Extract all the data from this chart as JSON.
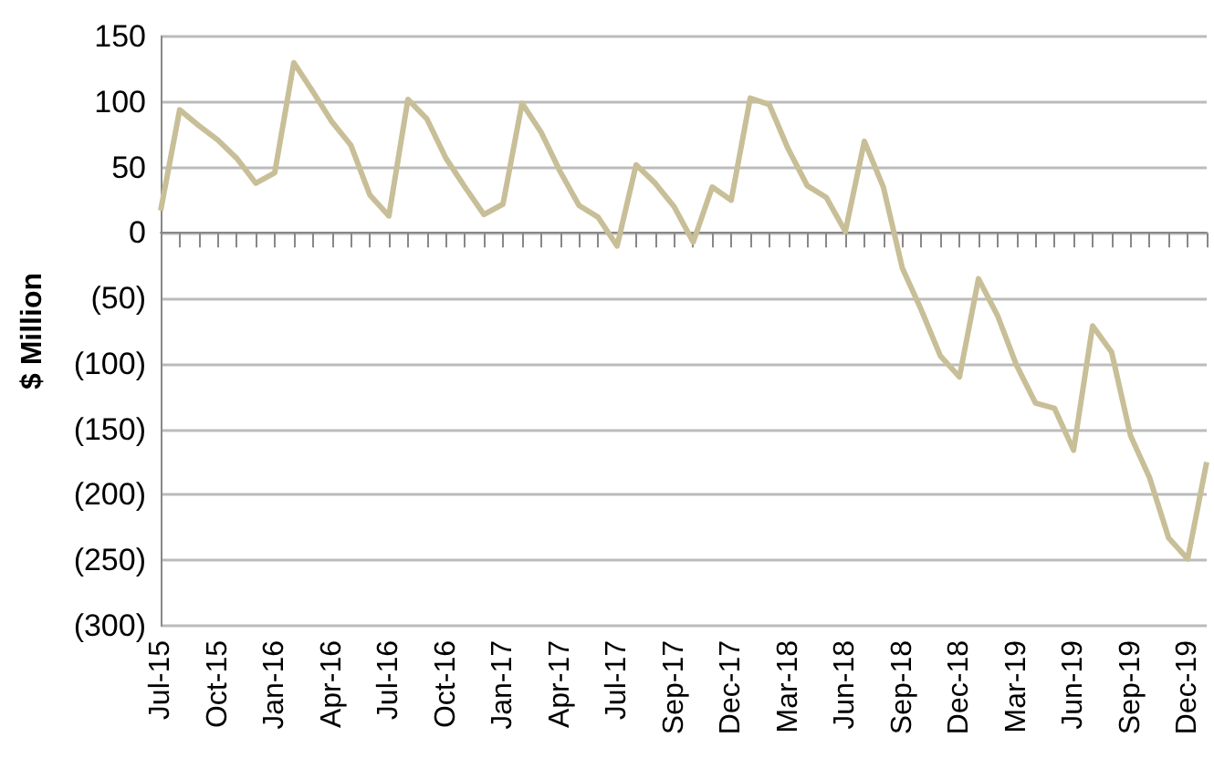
{
  "chart_data": {
    "type": "line",
    "ylabel": "$ Million",
    "categories": [
      "Jul-15",
      null,
      null,
      "Oct-15",
      null,
      null,
      "Jan-16",
      null,
      null,
      "Apr-16",
      null,
      null,
      "Jul-16",
      null,
      null,
      "Oct-16",
      null,
      null,
      "Jan-17",
      null,
      null,
      "Apr-17",
      null,
      null,
      "Jul-17",
      null,
      null,
      "Sep-17",
      null,
      null,
      "Dec-17",
      null,
      null,
      "Mar-18",
      null,
      null,
      "Jun-18",
      null,
      null,
      "Sep-18",
      null,
      null,
      "Dec-18",
      null,
      null,
      "Mar-19",
      null,
      null,
      "Jun-19",
      null,
      null,
      "Sep-19",
      null,
      null,
      "Dec-19",
      null
    ],
    "series": [
      {
        "color": "#c8bf98",
        "values": [
          17,
          94,
          82,
          71,
          57,
          38,
          46,
          130,
          108,
          85,
          67,
          29,
          13,
          102,
          87,
          57,
          35,
          14,
          22,
          99,
          77,
          47,
          21,
          12,
          -10,
          52,
          38,
          20,
          -7,
          35,
          25,
          103,
          98,
          64,
          36,
          27,
          1,
          70,
          35,
          -27,
          -59,
          -94,
          -110,
          -35,
          -63,
          -101,
          -130,
          -134,
          -166,
          -71,
          -91,
          -155,
          -187,
          -233,
          -249,
          -175
        ]
      }
    ],
    "ylim": [
      -300,
      150
    ],
    "yticks": [
      {
        "value": -300,
        "label": "(300)"
      },
      {
        "value": -250,
        "label": "(250)"
      },
      {
        "value": -200,
        "label": "(200)"
      },
      {
        "value": -150,
        "label": "(150)"
      },
      {
        "value": -100,
        "label": "(100)"
      },
      {
        "value": -50,
        "label": "(50)"
      },
      0,
      50,
      100,
      150
    ],
    "grid": "y",
    "marker": "none",
    "line_style": "solid"
  }
}
